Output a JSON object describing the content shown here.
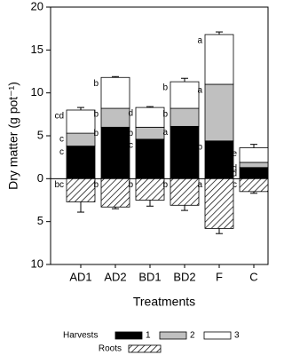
{
  "chart_data": {
    "type": "bar",
    "stacked": true,
    "xlabel": "Treatments",
    "ylabel": "Dry matter (g pot⁻¹)",
    "categories": [
      "AD1",
      "AD2",
      "BD1",
      "BD2",
      "F",
      "C"
    ],
    "ylim": [
      -10,
      20
    ],
    "yticks": [
      {
        "value": -10,
        "label": "10"
      },
      {
        "value": -5,
        "label": "5"
      },
      0,
      5,
      10,
      15,
      20
    ],
    "legend_title": "Harvests",
    "series": [
      {
        "name": "1",
        "color": "#000000",
        "values": [
          3.8,
          6.0,
          4.6,
          6.1,
          4.4,
          1.3
        ],
        "errors": [
          0.3,
          0.2,
          0.3,
          0.3,
          0.2,
          0.2
        ],
        "letters": [
          "c",
          "b",
          "c",
          "a",
          "b",
          "d"
        ]
      },
      {
        "name": "2",
        "color": "#c0c0c0",
        "values": [
          1.5,
          2.2,
          1.4,
          2.1,
          6.6,
          0.6
        ],
        "errors": [
          0.4,
          0.3,
          0.3,
          0.4,
          0.3,
          0.2
        ],
        "letters": [
          "c",
          "b",
          "b",
          "b",
          "a",
          "d"
        ]
      },
      {
        "name": "3",
        "color": "#ffffff",
        "values": [
          2.7,
          3.6,
          2.3,
          3.1,
          5.8,
          1.7
        ],
        "errors": [
          0.3,
          0.1,
          0.1,
          0.4,
          0.3,
          0.4
        ],
        "letters": [
          "cd",
          "b",
          "d",
          "b",
          "a",
          "e"
        ]
      },
      {
        "name": "Roots",
        "color": "#ffffff",
        "hatch": true,
        "values": [
          -2.7,
          -3.3,
          -2.5,
          -3.1,
          -5.8,
          -1.5
        ],
        "errors": [
          1.2,
          0.2,
          0.7,
          0.6,
          0.6,
          0.2
        ],
        "letters": [
          "bc",
          "b",
          "b",
          "b",
          "a",
          "c"
        ]
      }
    ]
  }
}
